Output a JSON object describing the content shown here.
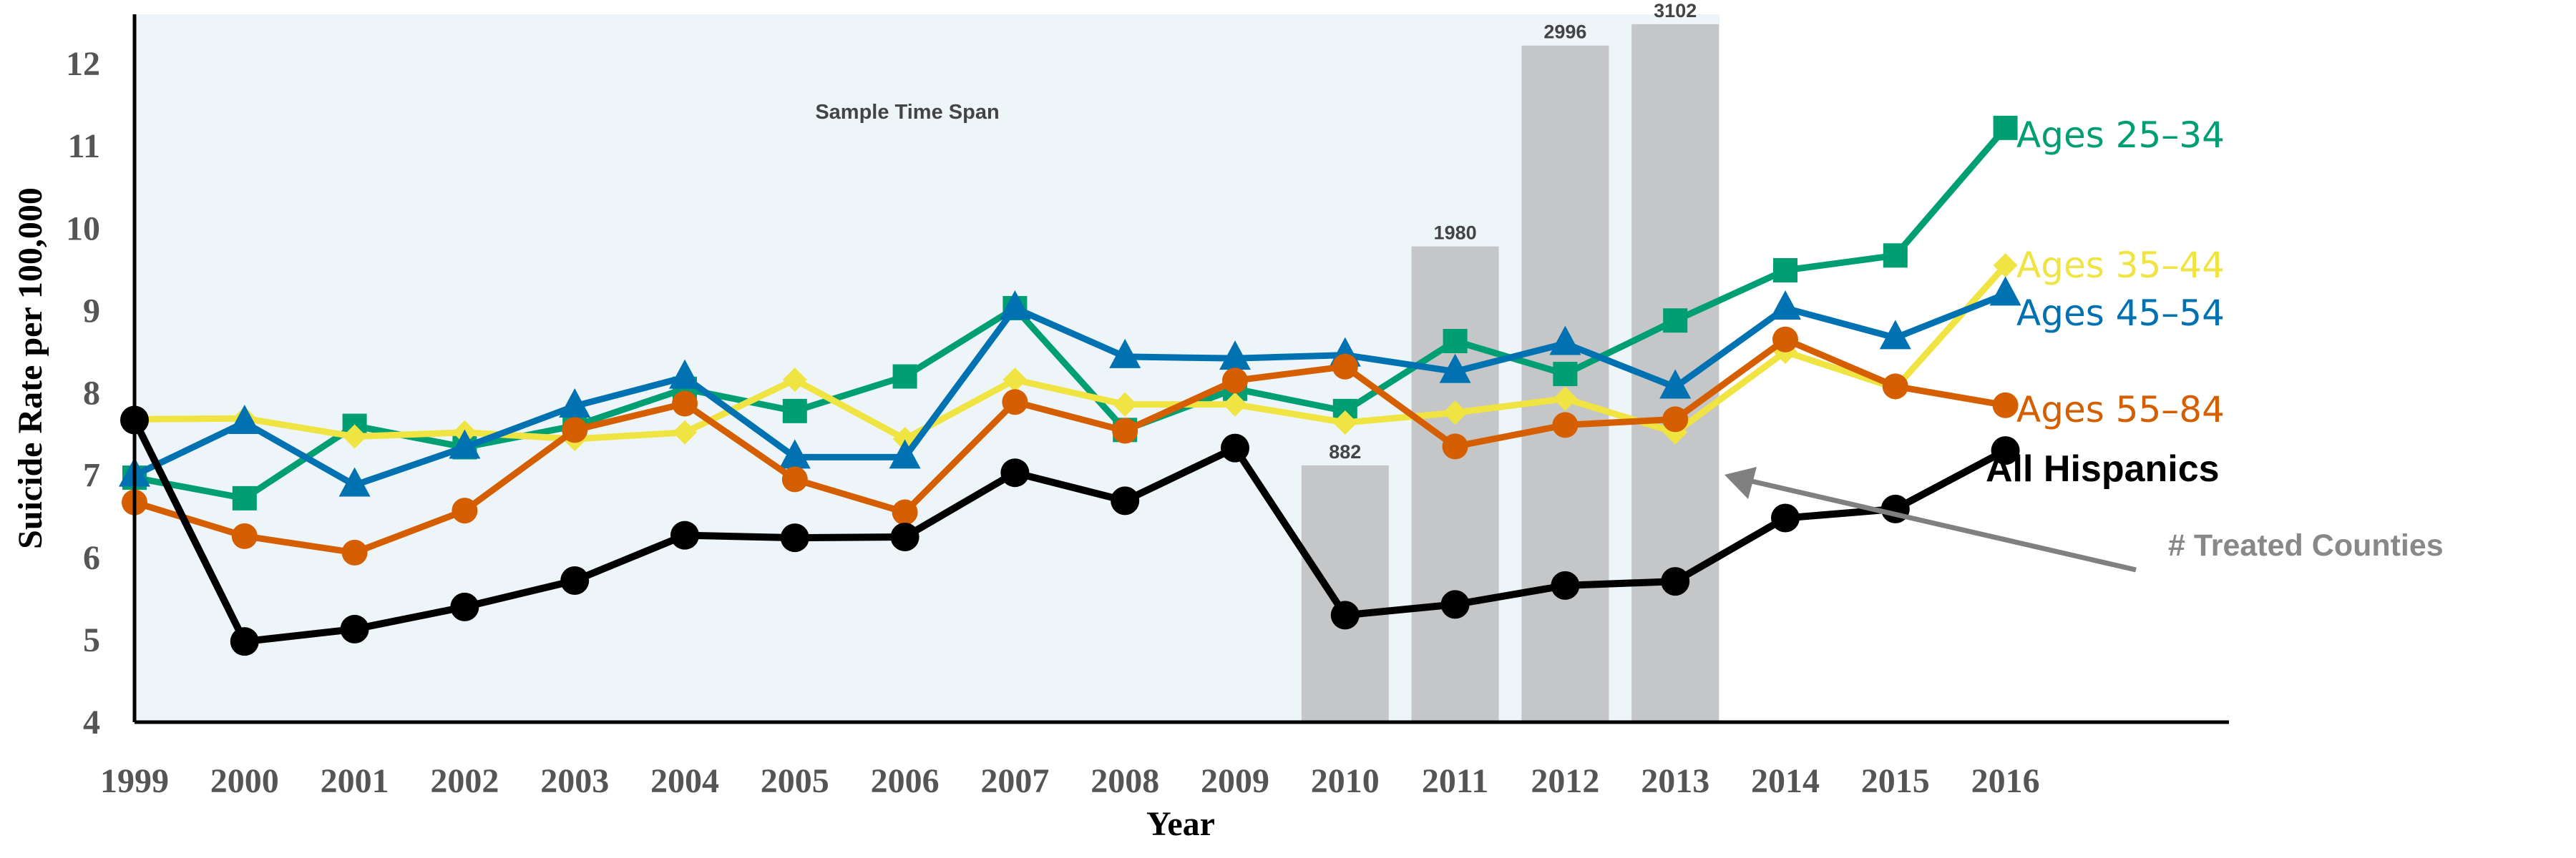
{
  "chart_data": {
    "type": "line",
    "ylabel": "Suicide Rate per 100,000",
    "xlabel": "Year",
    "ylim": [
      4,
      12.6
    ],
    "yticks": [
      "4",
      "5",
      "6",
      "7",
      "8",
      "9",
      "10",
      "11",
      "12"
    ],
    "x": [
      "1999",
      "2000",
      "2001",
      "2002",
      "2003",
      "2004",
      "2005",
      "2006",
      "2007",
      "2008",
      "2009",
      "2010",
      "2011",
      "2012",
      "2013",
      "2014",
      "2015",
      "2016"
    ],
    "shaded_region": {
      "label": "Sample Time Span",
      "from": "1999",
      "to": "2013"
    },
    "bars": {
      "name": "# Treated Counties",
      "arrow_label": "# Treated Counties",
      "x": [
        "2010",
        "2011",
        "2012",
        "2013"
      ],
      "labels": [
        "882",
        "1980",
        "2996",
        "3102"
      ],
      "heights": [
        7.12,
        9.78,
        12.22,
        12.48
      ]
    },
    "series": [
      {
        "name": "Ages 25–34",
        "label": "Ages 25–34",
        "color": "#009E73",
        "marker": "square",
        "values": [
          6.97,
          6.72,
          7.6,
          7.34,
          7.6,
          8.05,
          7.78,
          8.2,
          9.03,
          7.55,
          8.05,
          7.78,
          8.63,
          8.23,
          8.88,
          9.49,
          9.67,
          11.22
        ]
      },
      {
        "name": "Ages 35–44",
        "label": "Ages 35–44",
        "color": "#F0E442",
        "marker": "diamond",
        "values": [
          7.68,
          7.69,
          7.47,
          7.52,
          7.44,
          7.52,
          8.16,
          7.44,
          8.16,
          7.86,
          7.86,
          7.64,
          7.76,
          7.93,
          7.52,
          8.5,
          8.06,
          9.55
        ]
      },
      {
        "name": "Ages 45–54",
        "label": "Ages 45–54",
        "color": "#0072B2",
        "marker": "triangle",
        "values": [
          7.0,
          7.64,
          6.88,
          7.34,
          7.84,
          8.19,
          7.22,
          7.22,
          9.03,
          8.44,
          8.42,
          8.46,
          8.26,
          8.6,
          8.07,
          9.03,
          8.67,
          9.2
        ]
      },
      {
        "name": "Ages 55–84",
        "label": "Ages 55–84",
        "color": "#D55E00",
        "marker": "circle",
        "values": [
          6.67,
          6.26,
          6.06,
          6.57,
          7.55,
          7.87,
          6.95,
          6.55,
          7.89,
          7.54,
          8.15,
          8.32,
          7.35,
          7.61,
          7.68,
          8.65,
          8.08,
          7.85
        ]
      },
      {
        "name": "All Hispanics",
        "label": "All Hispanics",
        "color": "#000000",
        "marker": "circle",
        "values": [
          7.67,
          4.98,
          5.13,
          5.4,
          5.72,
          6.27,
          6.24,
          6.25,
          7.03,
          6.69,
          7.33,
          5.3,
          5.43,
          5.66,
          5.71,
          6.48,
          6.59,
          7.3
        ]
      }
    ]
  }
}
